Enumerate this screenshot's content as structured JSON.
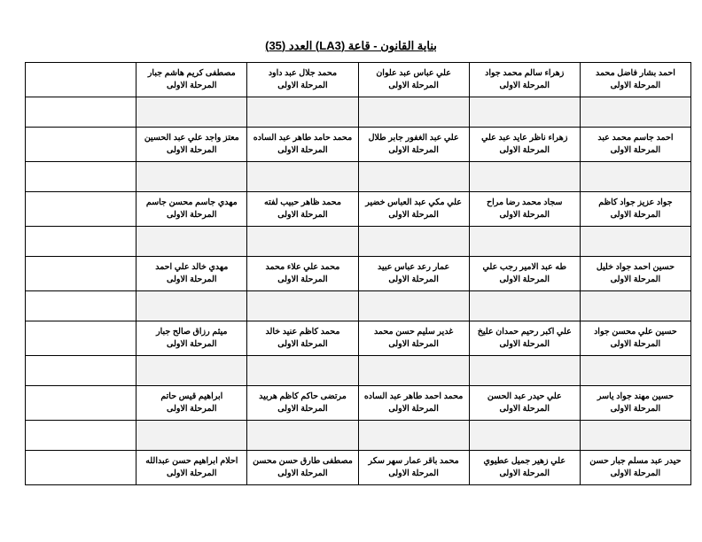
{
  "title": "بناية القانون - قاعة (LA3) العدد (35)",
  "stage_label": "المرحلة الاولى",
  "rows": [
    [
      "احمد بشار فاضل محمد",
      "زهراء سالم محمد جواد",
      "علي عباس عبد علوان",
      "محمد جلال عبد داود",
      "مصطفى كريم هاشم جبار"
    ],
    [
      "احمد جاسم محمد عبد",
      "زهراء ناظر عايد عبد علي",
      "علي عبد الغفور جابر طلال",
      "محمد حامد طاهر عبد الساده",
      "معتز واجد علي عبد الحسين"
    ],
    [
      "جواد عزيز جواد كاظم",
      "سجاد محمد رضا مراح",
      "علي مكي عبد العباس خضير",
      "محمد ظاهر حبيب لفته",
      "مهدي جاسم محسن جاسم"
    ],
    [
      "حسين احمد جواد خليل",
      "طه عبد الامير رجب علي",
      "عمار رعد عباس عبيد",
      "محمد علي علاء محمد",
      "مهدي خالد علي احمد"
    ],
    [
      "حسين علي محسن جواد",
      "علي اكبر رحيم حمدان عليخ",
      "غدير سليم حسن محمد",
      "محمد كاظم عنيد خالد",
      "ميثم رزاق صالح جبار"
    ],
    [
      "حسين مهند جواد ياسر",
      "علي حيدر عبد الحسن",
      "محمد احمد طاهر عبد الساده",
      "مرتضى حاكم كاظم هربيد",
      "ابراهيم قيس حاتم"
    ],
    [
      "حيدر عبد مسلم جبار حسن",
      "علي زهير جميل عطيوي",
      "محمد باقر عمار سهر سكر",
      "مصطفى طارق حسن محسن",
      "احلام ابراهيم حسن عبدالله"
    ]
  ]
}
